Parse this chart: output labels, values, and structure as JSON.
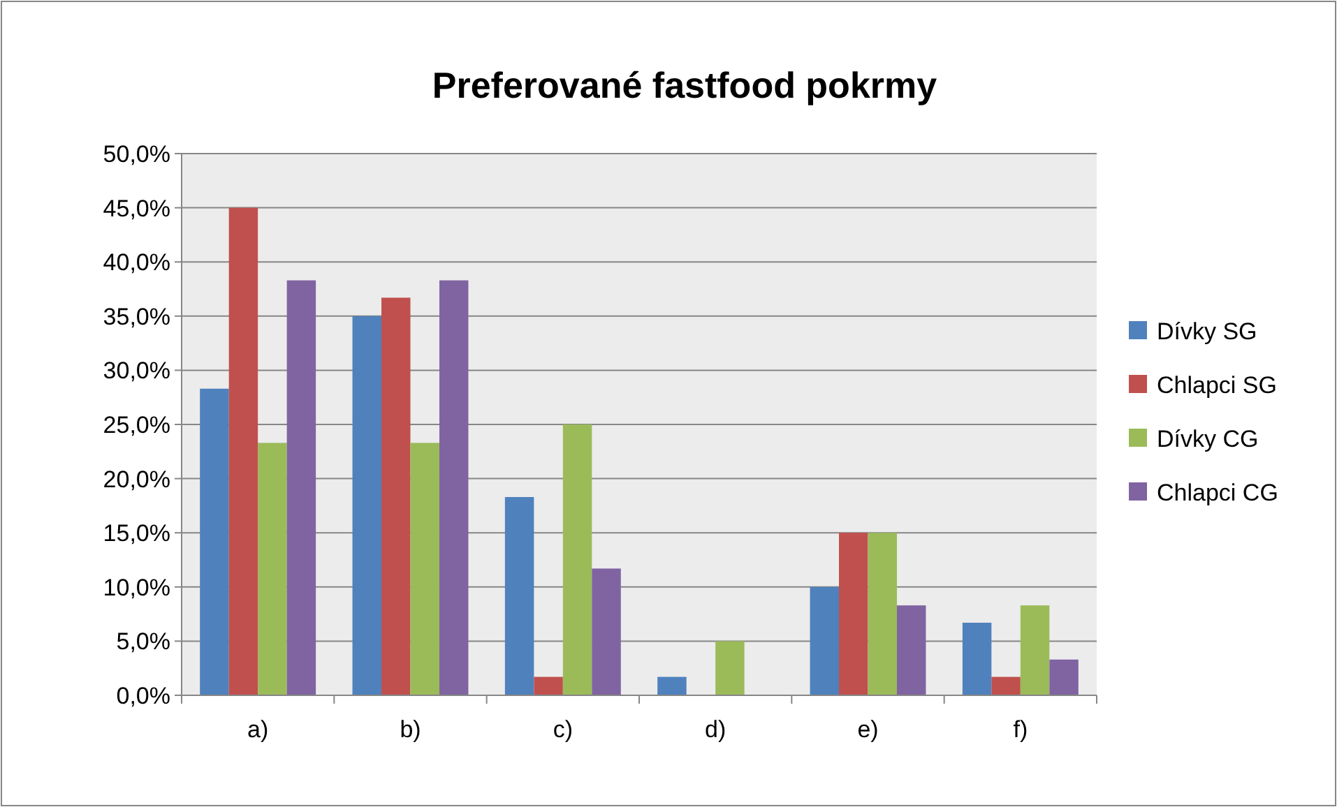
{
  "chart_data": {
    "type": "bar",
    "title": "Preferované fastfood pokrmy",
    "categories": [
      "a)",
      "b)",
      "c)",
      "d)",
      "e)",
      "f)"
    ],
    "series": [
      {
        "name": "Dívky SG",
        "color": "#4f81bd",
        "values": [
          28.3,
          35,
          18.3,
          1.7,
          10,
          6.7
        ]
      },
      {
        "name": "Chlapci SG",
        "color": "#c0504d",
        "values": [
          45,
          36.7,
          1.7,
          0,
          15,
          1.7
        ]
      },
      {
        "name": "Dívky CG",
        "color": "#9bbb59",
        "values": [
          23.3,
          23.3,
          25,
          5,
          15,
          8.3
        ]
      },
      {
        "name": "Chlapci CG",
        "color": "#8064a2",
        "values": [
          38.3,
          38.3,
          11.7,
          0,
          8.3,
          3.3
        ]
      }
    ],
    "ylim": [
      0,
      50
    ],
    "yticks": [
      {
        "value": 0,
        "label": "0,0%"
      },
      {
        "value": 5,
        "label": "5,0%"
      },
      {
        "value": 10,
        "label": "10,0%"
      },
      {
        "value": 15,
        "label": "15,0%"
      },
      {
        "value": 20,
        "label": "20,0%"
      },
      {
        "value": 25,
        "label": "25,0%"
      },
      {
        "value": 30,
        "label": "30,0%"
      },
      {
        "value": 35,
        "label": "35,0%"
      },
      {
        "value": 40,
        "label": "40,0%"
      },
      {
        "value": 45,
        "label": "45,0%"
      },
      {
        "value": 50,
        "label": "50,0%"
      }
    ],
    "grid": "y",
    "legend": "right"
  }
}
